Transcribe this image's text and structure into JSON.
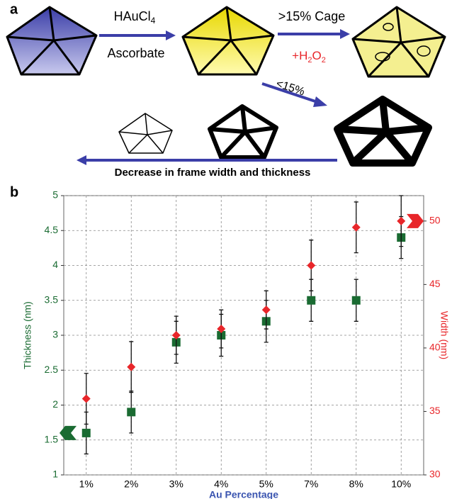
{
  "diagram": {
    "panel_a": "a",
    "reagent": [
      "HAuCl",
      "4"
    ],
    "reductant": "Ascorbate",
    "cage_label": ">15% Cage",
    "oxidant": [
      "+H",
      "2",
      "O",
      "2"
    ],
    "frame_label": "<15%",
    "trend": "Decrease in frame width and thickness"
  },
  "chart_data": {
    "type": "scatter",
    "panel": "b",
    "categories": [
      "1%",
      "2%",
      "3%",
      "4%",
      "5%",
      "7%",
      "8%",
      "10%"
    ],
    "xlabel": "Au Percentage",
    "ylabel": "Thickness (nm)",
    "y2label": "Width (nm)",
    "ylim": [
      1,
      5
    ],
    "yticks": [
      1,
      1.5,
      2,
      2.5,
      3,
      3.5,
      4,
      4.5,
      5
    ],
    "y2lim": [
      30,
      52
    ],
    "y2ticks": [
      30,
      35,
      40,
      45,
      50
    ],
    "grid": true,
    "series": [
      {
        "color": "#1a6b32",
        "marker": "square",
        "values": [
          1.6,
          1.9,
          2.9,
          3.0,
          3.2,
          3.5,
          3.5,
          4.4
        ],
        "errors": [
          0.3,
          0.3,
          0.3,
          0.3,
          0.3,
          0.3,
          0.3,
          0.3
        ]
      },
      {
        "color": "#e8262a",
        "marker": "diamond",
        "axis": "y2",
        "values": [
          36,
          38.5,
          41,
          41.5,
          43,
          46.5,
          49.5,
          50
        ],
        "errors": [
          2,
          2,
          1.5,
          1.5,
          1.5,
          2,
          2,
          2
        ]
      }
    ]
  }
}
